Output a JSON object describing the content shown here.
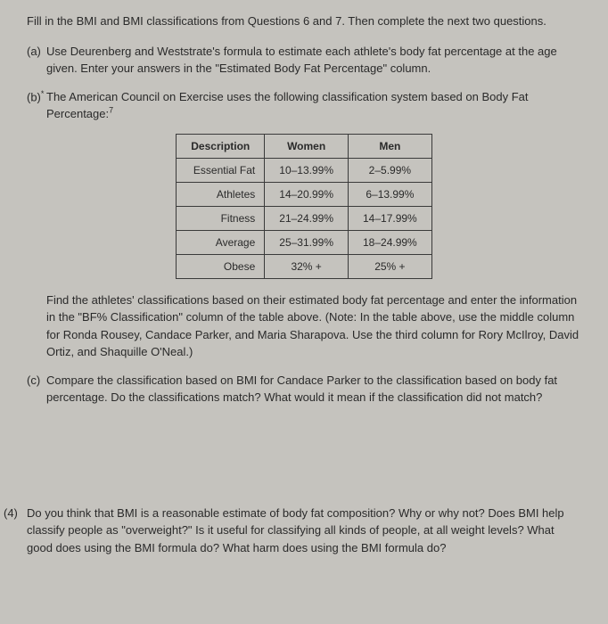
{
  "intro": "Fill in the BMI and BMI classifications from Questions 6 and 7. Then complete the next two questions.",
  "question_a": {
    "label": "(a)",
    "text": "Use Deurenberg and Weststrate's formula to estimate each athlete's body fat percentage at the age given. Enter your answers in the \"Estimated Body Fat Percentage\" column."
  },
  "question_b": {
    "label": "(b)",
    "text": "The American Council on Exercise uses the following classification system based on Body Fat Percentage:"
  },
  "table": {
    "headers": [
      "Description",
      "Women",
      "Men"
    ],
    "rows": [
      [
        "Essential Fat",
        "10–13.99%",
        "2–5.99%"
      ],
      [
        "Athletes",
        "14–20.99%",
        "6–13.99%"
      ],
      [
        "Fitness",
        "21–24.99%",
        "14–17.99%"
      ],
      [
        "Average",
        "25–31.99%",
        "18–24.99%"
      ],
      [
        "Obese",
        "32% +",
        "25% +"
      ]
    ],
    "border_color": "#3a3a3a",
    "fontsize": 12
  },
  "after_table": "Find the athletes' classifications based on their estimated body fat percentage and enter the information in the \"BF% Classification\" column of the table above. (Note: In the table above, use the middle column for Ronda Rousey, Candace Parker, and Maria Sharapova. Use the third column for Rory McIlroy, David Ortiz, and Shaquille O'Neal.)",
  "question_c": {
    "label": "(c)",
    "text": "Compare the classification based on BMI for Candace Parker to the classification based on body fat percentage. Do the classifications match? What would it mean if the classification did not match?"
  },
  "question_4": {
    "label": "(4)",
    "text": "Do you think that BMI is a reasonable estimate of body fat composition? Why or why not? Does BMI help classify people as \"overweight?\" Is it useful for classifying all kinds of people, at all weight levels? What good does using the BMI formula do? What harm does using the BMI formula do?"
  },
  "colors": {
    "background": "#c5c3be",
    "text": "#2a2a2a"
  }
}
